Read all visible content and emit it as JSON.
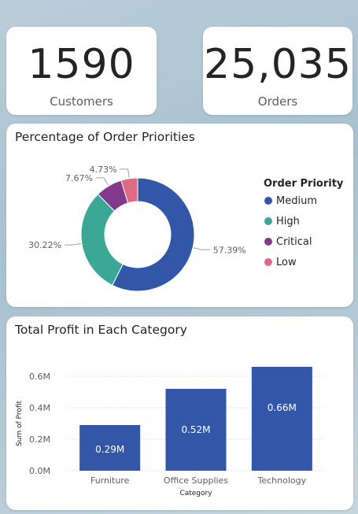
{
  "kpis": {
    "customers": {
      "value": "1590",
      "label": "Customers"
    },
    "orders": {
      "value": "25,035",
      "label": "Orders"
    }
  },
  "donut": {
    "title": "Percentage of Order Priorities",
    "legend_title": "Order Priority"
  },
  "bar": {
    "title": "Total Profit in Each Category"
  },
  "chart_data": [
    {
      "type": "pie",
      "title": "Percentage of Order Priorities",
      "legend_title": "Order Priority",
      "legend_position": "right",
      "categories": [
        "Medium",
        "High",
        "Critical",
        "Low"
      ],
      "values": [
        57.39,
        30.22,
        7.67,
        4.73
      ],
      "labels": [
        "57.39%",
        "30.22%",
        "7.67%",
        "4.73%"
      ],
      "colors": [
        "#3257a8",
        "#3aa894",
        "#843a8c",
        "#e06a86"
      ]
    },
    {
      "type": "bar",
      "title": "Total Profit in Each Category",
      "xlabel": "Category",
      "ylabel": "Sum of Profit",
      "categories": [
        "Furniture",
        "Office Supplies",
        "Technology"
      ],
      "values": [
        0.29,
        0.52,
        0.66
      ],
      "value_labels": [
        "0.29M",
        "0.52M",
        "0.66M"
      ],
      "ylim": [
        0,
        0.6
      ],
      "yticks": [
        0,
        0.2,
        0.4,
        0.6
      ],
      "ytick_labels": [
        "0.0M",
        "0.2M",
        "0.4M",
        "0.6M"
      ],
      "grid": true,
      "color": "#3257a8"
    }
  ]
}
